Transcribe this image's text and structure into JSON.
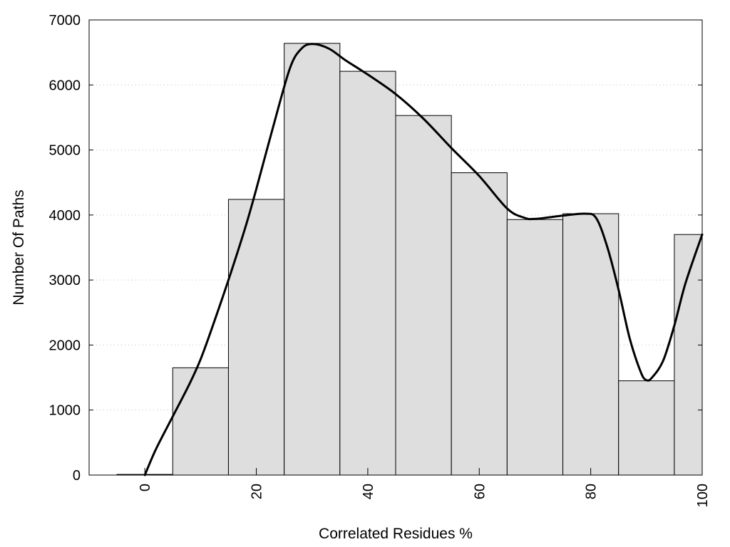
{
  "chart_data": {
    "type": "bar",
    "title": "",
    "xlabel": "Correlated Residues %",
    "ylabel": "Number Of Paths",
    "xlim": [
      -10,
      100
    ],
    "ylim": [
      0,
      7000
    ],
    "x_ticks": [
      0,
      20,
      40,
      60,
      80,
      100
    ],
    "y_ticks": [
      0,
      1000,
      2000,
      3000,
      4000,
      5000,
      6000,
      7000
    ],
    "grid": "horizontal-dotted",
    "bin_width": 10,
    "bars": [
      {
        "x": 0,
        "value": 10
      },
      {
        "x": 10,
        "value": 1650
      },
      {
        "x": 20,
        "value": 4240
      },
      {
        "x": 30,
        "value": 6640
      },
      {
        "x": 40,
        "value": 6210
      },
      {
        "x": 50,
        "value": 5530
      },
      {
        "x": 60,
        "value": 4650
      },
      {
        "x": 70,
        "value": 3930
      },
      {
        "x": 80,
        "value": 4020
      },
      {
        "x": 90,
        "value": 1450
      },
      {
        "x": 100,
        "value": 3700
      }
    ],
    "smooth_curve": [
      {
        "x": 0,
        "y": 0
      },
      {
        "x": 2,
        "y": 400
      },
      {
        "x": 5,
        "y": 900
      },
      {
        "x": 8,
        "y": 1400
      },
      {
        "x": 10,
        "y": 1780
      },
      {
        "x": 12,
        "y": 2250
      },
      {
        "x": 15,
        "y": 3000
      },
      {
        "x": 18,
        "y": 3800
      },
      {
        "x": 20,
        "y": 4400
      },
      {
        "x": 23,
        "y": 5350
      },
      {
        "x": 26,
        "y": 6250
      },
      {
        "x": 28,
        "y": 6550
      },
      {
        "x": 30,
        "y": 6630
      },
      {
        "x": 33,
        "y": 6560
      },
      {
        "x": 36,
        "y": 6380
      },
      {
        "x": 40,
        "y": 6160
      },
      {
        "x": 45,
        "y": 5860
      },
      {
        "x": 50,
        "y": 5480
      },
      {
        "x": 55,
        "y": 5030
      },
      {
        "x": 60,
        "y": 4600
      },
      {
        "x": 65,
        "y": 4100
      },
      {
        "x": 68,
        "y": 3960
      },
      {
        "x": 70,
        "y": 3940
      },
      {
        "x": 75,
        "y": 3990
      },
      {
        "x": 79,
        "y": 4020
      },
      {
        "x": 81,
        "y": 3950
      },
      {
        "x": 83,
        "y": 3500
      },
      {
        "x": 85,
        "y": 2850
      },
      {
        "x": 87,
        "y": 2100
      },
      {
        "x": 89,
        "y": 1580
      },
      {
        "x": 90,
        "y": 1460
      },
      {
        "x": 91,
        "y": 1500
      },
      {
        "x": 93,
        "y": 1760
      },
      {
        "x": 95,
        "y": 2300
      },
      {
        "x": 97,
        "y": 2950
      },
      {
        "x": 100,
        "y": 3700
      }
    ]
  }
}
